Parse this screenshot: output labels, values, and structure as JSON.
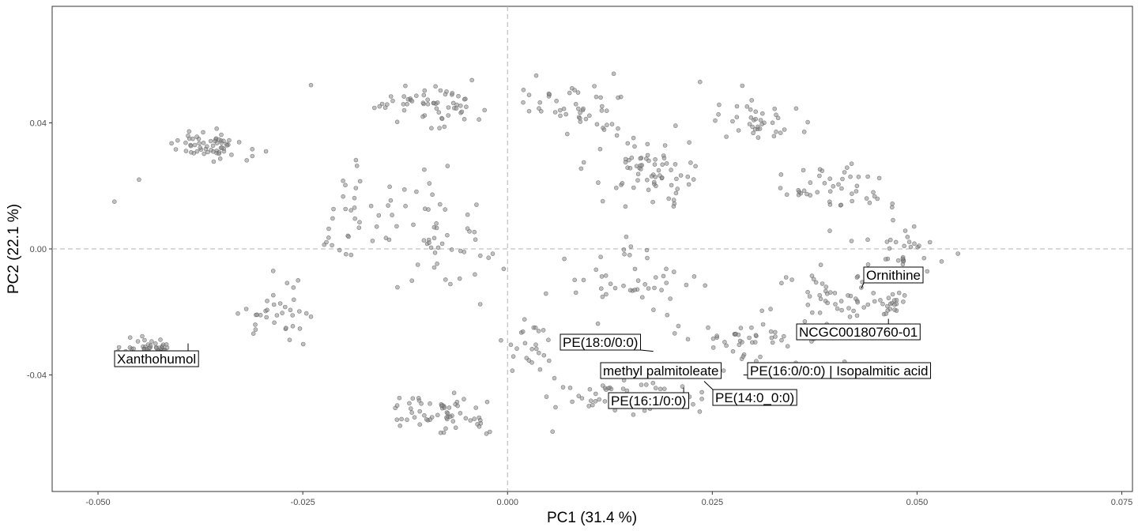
{
  "chart_data": {
    "type": "scatter",
    "title": "",
    "xlabel": "PC1 (31.4 %)",
    "ylabel": "PC2 (22.1 %)",
    "xlim": [
      -0.0556,
      0.0763
    ],
    "ylim": [
      -0.077,
      0.077
    ],
    "xticks": [
      -0.05,
      -0.025,
      0,
      0.025,
      0.05,
      0.075
    ],
    "xtick_labels": [
      "-0.050",
      "-0.025",
      "0.000",
      "0.025",
      "0.050",
      "0.075"
    ],
    "yticks": [
      -0.04,
      0,
      0.04
    ],
    "ytick_labels": [
      "-0.04",
      "0.00",
      "0.04"
    ],
    "reference_lines": {
      "x": 0,
      "y": 0,
      "style": "dashed"
    },
    "grid": false,
    "point_color": "#8c8c8c",
    "labels": [
      {
        "text": "Ornithine",
        "x": 0.0432,
        "y": -0.0125
      },
      {
        "text": "NCGC00180760-01",
        "x": 0.0465,
        "y": -0.0222
      },
      {
        "text": "PE(18:0/0:0)",
        "x": 0.0178,
        "y": -0.0325
      },
      {
        "text": "Xanthohumol",
        "x": -0.039,
        "y": -0.03
      },
      {
        "text": "methyl palmitoleate",
        "x": 0.025,
        "y": -0.038
      },
      {
        "text": "PE(16:0/0:0) | Isopalmitic acid",
        "x": 0.0288,
        "y": -0.04
      },
      {
        "text": "PE(16:1/0:0)",
        "x": 0.0215,
        "y": -0.044
      },
      {
        "text": "PE(14:0_0:0)",
        "x": 0.024,
        "y": -0.042
      }
    ]
  }
}
